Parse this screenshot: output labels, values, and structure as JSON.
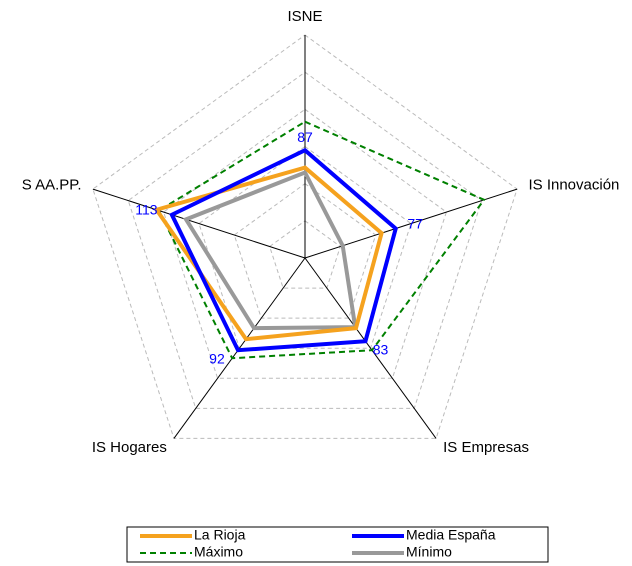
{
  "chart_data": {
    "type": "radar",
    "categories": [
      "ISNE",
      "IS Innovación",
      "IS Empresas",
      "IS Hogares",
      "S AA.PP."
    ],
    "rlim": [
      0,
      180
    ],
    "rticks": [
      30,
      60,
      90,
      120,
      150,
      180
    ],
    "grid": true,
    "series": [
      {
        "name": "La Rioja",
        "color": "#f5a21e",
        "values": [
          73,
          65,
          70,
          81,
          126
        ]
      },
      {
        "name": "Media España",
        "color": "#0000ff",
        "values": [
          87,
          77,
          83,
          92,
          113
        ],
        "labels": true
      },
      {
        "name": "Máximo",
        "color": "#008000",
        "dashed": true,
        "values": [
          110,
          152,
          92,
          100,
          124
        ]
      },
      {
        "name": "Mínimo",
        "color": "#999999",
        "values": [
          69,
          32,
          69,
          70,
          101
        ]
      }
    ]
  }
}
